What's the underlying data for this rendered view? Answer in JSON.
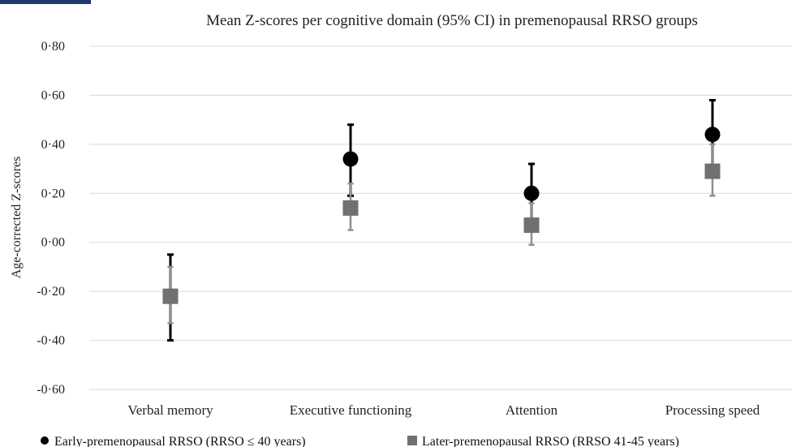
{
  "chart_data": {
    "type": "scatter",
    "title": "Mean Z-scores per cognitive domain (95% CI) in premenopausal RRSO groups",
    "ylabel": "Age-corrected Z-scores",
    "xlabel": "",
    "ylim": [
      -0.6,
      0.8
    ],
    "yticks": [
      0.8,
      0.6,
      0.4,
      0.2,
      0.0,
      -0.2,
      -0.4,
      -0.6
    ],
    "ytick_labels": [
      "0·80",
      "0·60",
      "0·40",
      "0·20",
      "0·00",
      "-0·20",
      "-0·40",
      "-0·60"
    ],
    "grid": true,
    "legend_position": "bottom",
    "categories": [
      "Verbal memory",
      "Executive functioning",
      "Attention",
      "Processing speed"
    ],
    "series": [
      {
        "name": "Early-premenopausal RRSO (RRSO ≤ 40 years)",
        "marker": "circle",
        "color": "#000000",
        "values": [
          -0.22,
          0.34,
          0.2,
          0.44
        ],
        "ci_low": [
          -0.4,
          0.19,
          0.08,
          0.29
        ],
        "ci_high": [
          -0.05,
          0.48,
          0.32,
          0.58
        ]
      },
      {
        "name": "Later-premenopausal RRSO (RRSO 41-45 years)",
        "marker": "square",
        "color": "#707070",
        "values": [
          -0.22,
          0.14,
          0.07,
          0.29
        ],
        "ci_low": [
          -0.33,
          0.05,
          -0.01,
          0.19
        ],
        "ci_high": [
          -0.1,
          0.24,
          0.16,
          0.4
        ]
      }
    ]
  }
}
